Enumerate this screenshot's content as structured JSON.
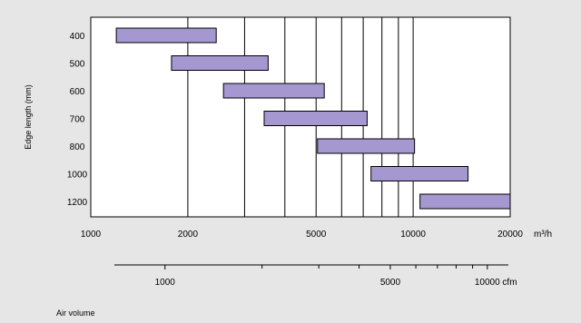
{
  "chart_data": {
    "type": "bar",
    "orientation": "horizontal-range",
    "ylabel": "Edge length (mm)",
    "xlabel": "Air volume",
    "x_unit": "m³/h",
    "x_scale": "log",
    "xlim": [
      1000,
      20000
    ],
    "x_ticks": [
      1000,
      2000,
      5000,
      10000,
      20000
    ],
    "x_tick_labels": [
      "1000",
      "2000",
      "5000",
      "10000",
      "20000"
    ],
    "x_gridlines": [
      2000,
      3000,
      4000,
      5000,
      6000,
      7000,
      8000,
      9000,
      10000
    ],
    "categories": [
      "400",
      "500",
      "600",
      "700",
      "800",
      "1000",
      "1200"
    ],
    "ranges": [
      {
        "category": "400",
        "min": 1200,
        "max": 2450
      },
      {
        "category": "500",
        "min": 1780,
        "max": 3550
      },
      {
        "category": "600",
        "min": 2580,
        "max": 5300
      },
      {
        "category": "700",
        "min": 3450,
        "max": 7200
      },
      {
        "category": "800",
        "min": 5050,
        "max": 10100
      },
      {
        "category": "1000",
        "min": 7400,
        "max": 14800
      },
      {
        "category": "1200",
        "min": 10500,
        "max": 20000
      }
    ],
    "bar_color": "#a597cf",
    "plot_background": "#ffffff",
    "grid": true,
    "secondary_axis": {
      "unit": "cfm",
      "scale": "log",
      "ticks_major": [
        1000,
        5000,
        10000
      ],
      "tick_labels": [
        "1000",
        "5000",
        "10000 cfm"
      ],
      "ticks_minor": [
        2000,
        3000,
        4000,
        6000,
        7000,
        8000,
        9000
      ]
    }
  }
}
